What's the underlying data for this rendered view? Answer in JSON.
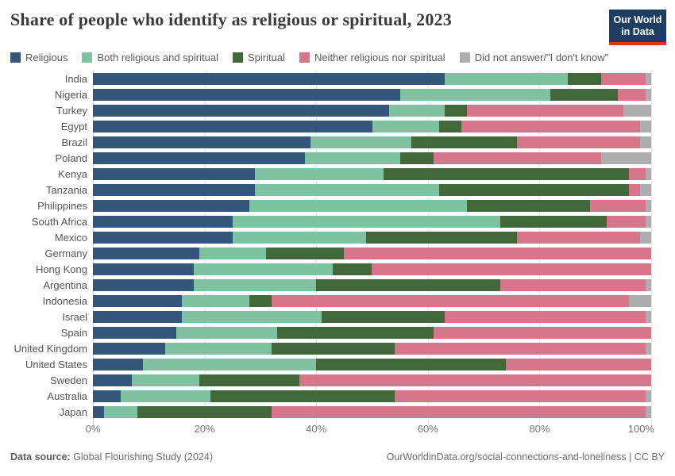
{
  "header": {
    "title": "Share of people who identify as religious or spiritual, 2023",
    "logo": {
      "line1": "Our World",
      "line2": "in Data",
      "bg_color": "#1d3d63",
      "accent_color": "#d8352a"
    }
  },
  "legend": {
    "items": [
      {
        "label": "Religious",
        "color": "#34567d"
      },
      {
        "label": "Both religious and spiritual",
        "color": "#7ec2a2"
      },
      {
        "label": "Spiritual",
        "color": "#42683a"
      },
      {
        "label": "Neither religious nor spiritual",
        "color": "#d7758a"
      },
      {
        "label": "Did not answer/\"I don't know\"",
        "color": "#adadad"
      }
    ]
  },
  "chart_data": {
    "type": "bar",
    "orientation": "horizontal",
    "stacked": true,
    "unit": "%",
    "title": "Share of people who identify as religious or spiritual, 2023",
    "xlabel": "",
    "ylabel": "",
    "xlim": [
      0,
      100
    ],
    "x_ticks": [
      "0%",
      "20%",
      "40%",
      "60%",
      "80%",
      "100%"
    ],
    "grid": true,
    "legend_position": "top",
    "categories": [
      "India",
      "Nigeria",
      "Turkey",
      "Egypt",
      "Brazil",
      "Poland",
      "Kenya",
      "Tanzania",
      "Philippines",
      "South Africa",
      "Mexico",
      "Germany",
      "Hong Kong",
      "Argentina",
      "Indonesia",
      "Israel",
      "Spain",
      "United Kingdom",
      "United States",
      "Sweden",
      "Australia",
      "Japan"
    ],
    "series": [
      {
        "name": "Religious",
        "key": "religious",
        "color": "#34567d",
        "values": [
          63,
          55,
          53,
          50,
          39,
          38,
          29,
          29,
          28,
          25,
          25,
          19,
          18,
          18,
          16,
          16,
          15,
          13,
          9,
          7,
          5,
          2
        ]
      },
      {
        "name": "Both religious and spiritual",
        "key": "both-religious-and-spiritual",
        "color": "#7ec2a2",
        "values": [
          22,
          27,
          10,
          12,
          18,
          17,
          23,
          33,
          39,
          48,
          24,
          12,
          25,
          22,
          12,
          25,
          18,
          19,
          31,
          12,
          16,
          6
        ]
      },
      {
        "name": "Spiritual",
        "key": "spiritual",
        "color": "#42683a",
        "values": [
          6,
          12,
          4,
          4,
          19,
          6,
          44,
          34,
          22,
          19,
          27,
          14,
          7,
          33,
          4,
          22,
          28,
          22,
          34,
          18,
          33,
          24
        ]
      },
      {
        "name": "Neither religious nor spiritual",
        "key": "neither-religious-nor-spiritual",
        "color": "#d7758a",
        "values": [
          8,
          5,
          28,
          32,
          22,
          30,
          3,
          2,
          10,
          7,
          22,
          55,
          50,
          26,
          64,
          36,
          39,
          45,
          26,
          63,
          45,
          67
        ]
      },
      {
        "name": "Did not answer/\"I don't know\"",
        "key": "did-not-answer",
        "color": "#adadad",
        "values": [
          1,
          1,
          5,
          2,
          2,
          9,
          1,
          2,
          1,
          1,
          2,
          0,
          0,
          1,
          4,
          1,
          0,
          1,
          0,
          0,
          1,
          1
        ]
      }
    ]
  },
  "footer": {
    "source_label": "Data source:",
    "source_text": " Global Flourishing Study (2024)",
    "link_text": "OurWorldinData.org/social-connections-and-loneliness | CC BY"
  }
}
